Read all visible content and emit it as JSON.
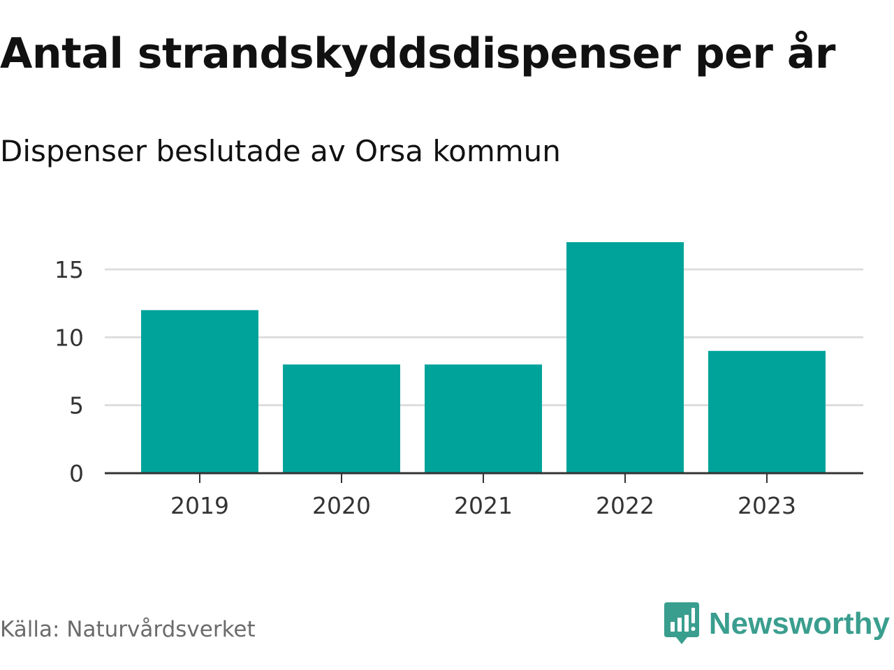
{
  "title": "Antal strandskyddsdispenser per år",
  "subtitle": "Dispenser beslutade av Orsa kommun",
  "source": "Källa: Naturvårdsverket",
  "brand": {
    "name": "Newsworthy",
    "icon": "newsworthy-logo-icon",
    "color": "#3a9e8e"
  },
  "colors": {
    "bar": "#00a39a",
    "grid": "#dddddd",
    "axis": "#333333"
  },
  "chart_data": {
    "type": "bar",
    "title": "Antal strandskyddsdispenser per år",
    "subtitle": "Dispenser beslutade av Orsa kommun",
    "categories": [
      "2019",
      "2020",
      "2021",
      "2022",
      "2023"
    ],
    "values": [
      12,
      8,
      8,
      17,
      9
    ],
    "xlabel": "",
    "ylabel": "",
    "ylim": [
      0,
      17
    ],
    "yticks": [
      0,
      5,
      10,
      15
    ],
    "grid": true,
    "legend": "none"
  }
}
